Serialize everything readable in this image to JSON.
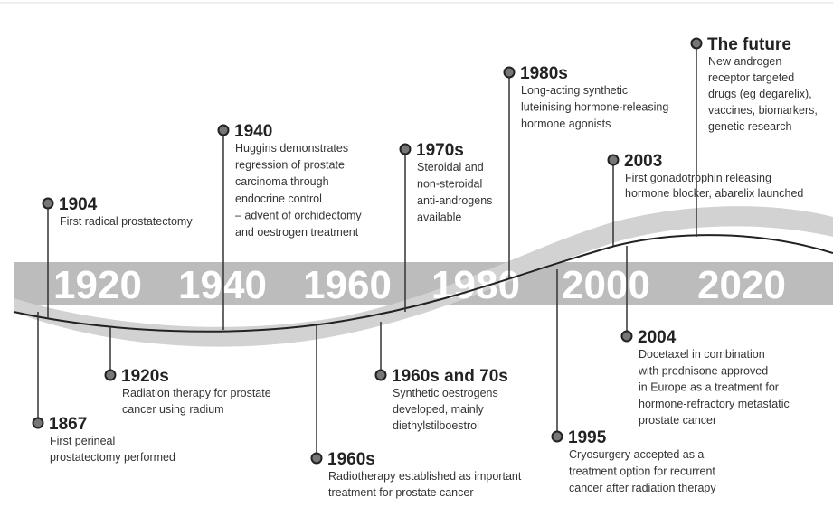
{
  "decades": [
    "1920",
    "1940",
    "1960",
    "1980",
    "2000",
    "2020"
  ],
  "events": [
    {
      "title": "1904",
      "lines": [
        "First radical prostatectomy"
      ]
    },
    {
      "title": "1940",
      "lines": [
        "Huggins demonstrates",
        "regression of prostate",
        "carcinoma through",
        "endocrine control",
        "– advent of orchidectomy",
        "and oestrogen treatment"
      ]
    },
    {
      "title": "1970s",
      "lines": [
        "Steroidal and",
        "non-steroidal",
        "anti-androgens",
        "available"
      ]
    },
    {
      "title": "1980s",
      "lines": [
        "Long-acting synthetic",
        "luteinising hormone-releasing",
        "hormone agonists"
      ]
    },
    {
      "title": "2003",
      "lines": [
        "First gonadotrophin releasing",
        "hormone blocker, abarelix launched"
      ]
    },
    {
      "title": "The future",
      "lines": [
        "New androgen",
        "receptor targeted",
        "drugs (eg degarelix),",
        "vaccines, biomarkers,",
        "genetic research"
      ]
    },
    {
      "title": "1867",
      "lines": [
        "First perineal",
        "prostatectomy performed"
      ]
    },
    {
      "title": "1920s",
      "lines": [
        "Radiation therapy for prostate",
        "cancer using radium"
      ]
    },
    {
      "title": "1960s",
      "lines": [
        "Radiotherapy established as important",
        "treatment for prostate cancer"
      ]
    },
    {
      "title": "1960s and 70s",
      "lines": [
        "Synthetic oestrogens",
        "developed, mainly",
        "diethylstilboestrol"
      ]
    },
    {
      "title": "1995",
      "lines": [
        "Cryosurgery accepted as a",
        "treatment option for recurrent",
        "cancer after radiation therapy"
      ]
    },
    {
      "title": "2004",
      "lines": [
        "Docetaxel in combination",
        "with prednisone approved",
        "in Europe as a treatment for",
        "hormone-refractory metastatic",
        "prostate cancer"
      ]
    }
  ]
}
